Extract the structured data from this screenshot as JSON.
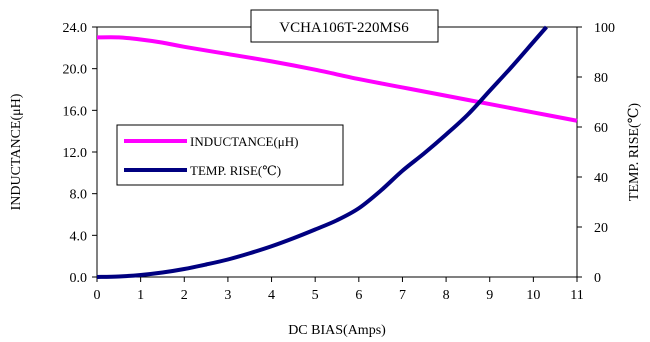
{
  "chart_data": {
    "type": "line",
    "title": "VCHA106T-220MS6",
    "xlabel": "DC BIAS(Amps)",
    "ylabel_left": "INDUCTANCE(μH)",
    "ylabel_right": "TEMP. RISE(℃)",
    "xlim": [
      0,
      11
    ],
    "ylim_left": [
      0,
      24
    ],
    "ylim_right": [
      0,
      100
    ],
    "x_ticks": [
      "0",
      "1",
      "2",
      "3",
      "4",
      "5",
      "6",
      "7",
      "8",
      "9",
      "10",
      "11"
    ],
    "y_left_ticks": [
      "0.0",
      "4.0",
      "8.0",
      "12.0",
      "16.0",
      "20.0",
      "24.0"
    ],
    "y_right_ticks": [
      "0",
      "20",
      "40",
      "60",
      "80",
      "100"
    ],
    "grid": false,
    "legend_position": "center-left",
    "series": [
      {
        "name": "INDUCTANCE(μH)",
        "axis": "left",
        "color": "#ff00ff",
        "x": [
          0,
          0.5,
          1,
          1.5,
          2,
          3,
          4,
          5,
          6,
          7,
          8,
          9,
          10,
          11
        ],
        "y": [
          23.0,
          23.0,
          22.8,
          22.5,
          22.1,
          21.4,
          20.7,
          19.9,
          19.0,
          18.2,
          17.4,
          16.6,
          15.8,
          15.0
        ]
      },
      {
        "name": "TEMP. RISE(℃)",
        "axis": "right",
        "color": "#000080",
        "x": [
          0,
          0.5,
          1,
          1.5,
          2,
          2.5,
          3,
          3.5,
          4,
          4.5,
          5,
          5.5,
          6,
          6.5,
          7,
          7.5,
          8,
          8.5,
          9,
          9.5,
          10,
          10.3
        ],
        "y": [
          0,
          0.2,
          0.8,
          1.8,
          3.2,
          5.0,
          7.0,
          9.5,
          12.3,
          15.5,
          19.0,
          22.7,
          27.5,
          34.5,
          42.5,
          49.5,
          57.0,
          65.0,
          74.5,
          84.0,
          94.0,
          100.0
        ]
      }
    ]
  }
}
